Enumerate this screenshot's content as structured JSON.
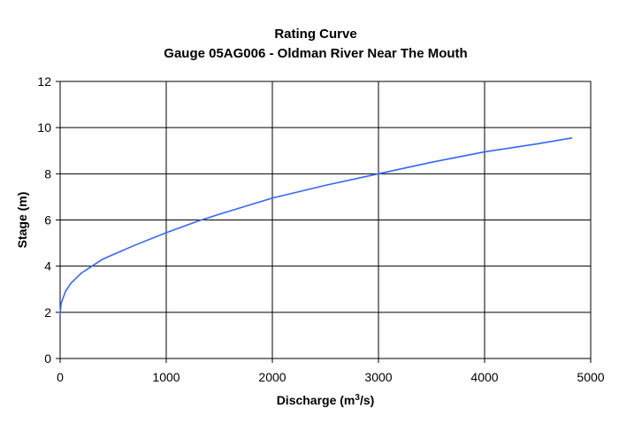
{
  "chart_data": {
    "type": "line",
    "title": "Rating Curve",
    "subtitle": "Gauge 05AG006 - Oldman River Near The Mouth",
    "xlabel": "Discharge (m",
    "xlabel_sup": "3",
    "xlabel_tail": "/s)",
    "ylabel": "Stage (m)",
    "xlim": [
      0,
      5000
    ],
    "ylim": [
      0,
      12
    ],
    "x_ticks": [
      0,
      1000,
      2000,
      3000,
      4000,
      5000
    ],
    "y_ticks": [
      0,
      2,
      4,
      6,
      8,
      10,
      12
    ],
    "x_tick_labels": [
      "0",
      "1000",
      "2000",
      "3000",
      "4000",
      "5000"
    ],
    "y_tick_labels": [
      "0",
      "2",
      "4",
      "6",
      "8",
      "10",
      "12"
    ],
    "grid": true,
    "legend": "none",
    "series": [
      {
        "color": "#3366ff",
        "x": [
          0,
          10,
          50,
          100,
          200,
          300,
          400,
          500,
          700,
          1000,
          1300,
          1500,
          2000,
          2500,
          3000,
          3500,
          4000,
          4500,
          4820
        ],
        "y": [
          1.95,
          2.4,
          2.9,
          3.25,
          3.7,
          4.0,
          4.3,
          4.5,
          4.9,
          5.45,
          5.95,
          6.25,
          6.95,
          7.5,
          8.0,
          8.5,
          8.95,
          9.3,
          9.55
        ]
      }
    ]
  }
}
